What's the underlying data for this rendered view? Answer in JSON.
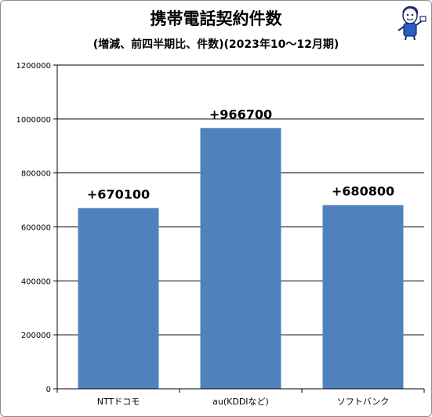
{
  "chart_data": {
    "type": "bar",
    "title": "携帯電話契約件数",
    "subtitle": "(増減、前四半期比、件数)(2023年10～12月期)",
    "categories": [
      "NTTドコモ",
      "au(KDDIなど)",
      "ソフトバンク"
    ],
    "values": [
      670100,
      966700,
      680800
    ],
    "data_labels": [
      "+670100",
      "+966700",
      "+680800"
    ],
    "ylim": [
      0,
      1200000
    ],
    "yticks": [
      "0",
      "200000",
      "400000",
      "600000",
      "800000",
      "1000000",
      "1200000"
    ],
    "grid": true,
    "bar_color": "#4f81bd",
    "grid_color": "#000000"
  },
  "mascot_icon": "reporter-mascot-icon"
}
